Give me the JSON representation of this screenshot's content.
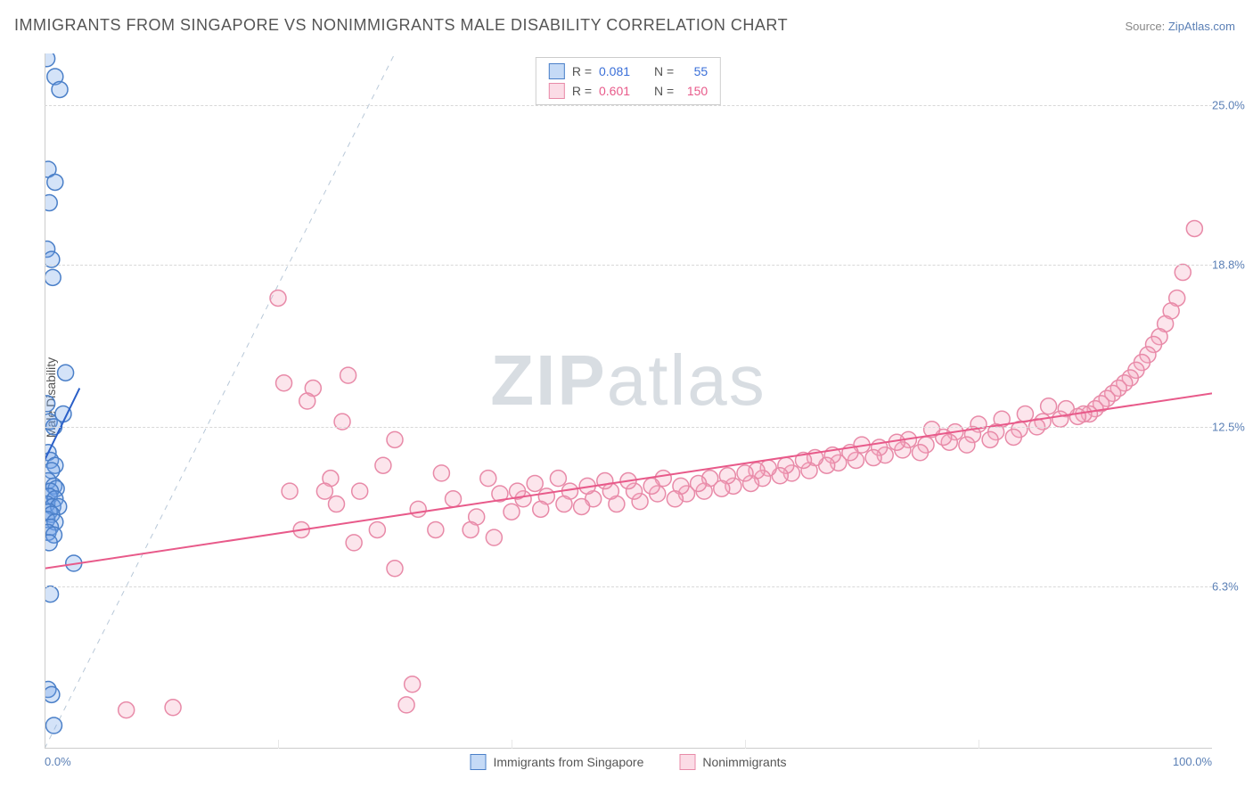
{
  "title": "IMMIGRANTS FROM SINGAPORE VS NONIMMIGRANTS MALE DISABILITY CORRELATION CHART",
  "source_prefix": "Source: ",
  "source_link": "ZipAtlas.com",
  "ylabel": "Male Disability",
  "watermark_left": "ZIP",
  "watermark_right": "atlas",
  "chart": {
    "type": "scatter",
    "background_color": "#ffffff",
    "grid_color": "#d8d8d8",
    "axis_color": "#cccccc",
    "xlim": [
      0,
      100
    ],
    "ylim": [
      0,
      27
    ],
    "x_ticks": [
      0,
      20,
      40,
      60,
      80,
      100
    ],
    "x_tick_labels": {
      "0": "0.0%",
      "100": "100.0%"
    },
    "x_tick_color": "#5a7fb5",
    "y_gridlines": [
      6.3,
      12.5,
      18.8,
      25.0
    ],
    "y_tick_labels": [
      "6.3%",
      "12.5%",
      "18.8%",
      "25.0%"
    ],
    "y_tick_color": "#5a7fb5",
    "marker_radius": 9,
    "marker_stroke_width": 1.5,
    "marker_fill_opacity": 0.3,
    "trend_line_width": 2,
    "diag_line": {
      "x1": 0,
      "y1": 0,
      "x2": 30,
      "y2": 27,
      "color": "#b8c8d8",
      "dash": "6,6",
      "width": 1
    }
  },
  "series": [
    {
      "id": "singapore",
      "label": "Immigrants from Singapore",
      "R": "0.081",
      "N": "55",
      "stat_color": "#3a6fd8",
      "marker_fill": "#6fa3e8",
      "marker_stroke": "#4a7fc8",
      "trend": {
        "x1": 0,
        "y1": 11.2,
        "x2": 3,
        "y2": 14.0,
        "color": "#2a5fc8"
      },
      "points": [
        [
          0.2,
          26.8
        ],
        [
          0.9,
          26.1
        ],
        [
          1.3,
          25.6
        ],
        [
          0.3,
          22.5
        ],
        [
          0.9,
          22.0
        ],
        [
          0.4,
          21.2
        ],
        [
          0.2,
          19.4
        ],
        [
          0.6,
          19.0
        ],
        [
          0.7,
          18.3
        ],
        [
          1.8,
          14.6
        ],
        [
          0.2,
          13.4
        ],
        [
          1.6,
          13.0
        ],
        [
          0.4,
          12.7
        ],
        [
          0.8,
          12.5
        ],
        [
          0.3,
          11.5
        ],
        [
          0.5,
          11.2
        ],
        [
          0.9,
          11.0
        ],
        [
          0.6,
          10.8
        ],
        [
          0.3,
          10.4
        ],
        [
          0.8,
          10.2
        ],
        [
          1.0,
          10.1
        ],
        [
          0.5,
          10.0
        ],
        [
          0.4,
          9.8
        ],
        [
          0.9,
          9.7
        ],
        [
          0.2,
          9.5
        ],
        [
          0.7,
          9.4
        ],
        [
          1.2,
          9.4
        ],
        [
          0.4,
          9.2
        ],
        [
          0.6,
          9.1
        ],
        [
          0.2,
          8.9
        ],
        [
          0.9,
          8.8
        ],
        [
          0.5,
          8.6
        ],
        [
          0.3,
          8.4
        ],
        [
          0.8,
          8.3
        ],
        [
          0.4,
          8.0
        ],
        [
          2.5,
          7.2
        ],
        [
          0.5,
          6.0
        ],
        [
          0.3,
          2.3
        ],
        [
          0.6,
          2.1
        ],
        [
          0.8,
          0.9
        ]
      ]
    },
    {
      "id": "nonimmigrants",
      "label": "Nonimmigrants",
      "R": "0.601",
      "N": "150",
      "stat_color": "#e85a8a",
      "marker_fill": "#f5a8c0",
      "marker_stroke": "#e88aa8",
      "trend": {
        "x1": 0,
        "y1": 7.0,
        "x2": 100,
        "y2": 13.8,
        "color": "#e85a8a"
      },
      "points": [
        [
          98.5,
          20.2
        ],
        [
          97.5,
          18.5
        ],
        [
          97.0,
          17.5
        ],
        [
          96.5,
          17.0
        ],
        [
          96.0,
          16.5
        ],
        [
          95.5,
          16.0
        ],
        [
          95.0,
          15.7
        ],
        [
          94.5,
          15.3
        ],
        [
          94.0,
          15.0
        ],
        [
          93.5,
          14.7
        ],
        [
          93.0,
          14.4
        ],
        [
          92.5,
          14.2
        ],
        [
          92.0,
          14.0
        ],
        [
          91.5,
          13.8
        ],
        [
          91.0,
          13.6
        ],
        [
          90.5,
          13.4
        ],
        [
          90.0,
          13.2
        ],
        [
          89.5,
          13.0
        ],
        [
          89.0,
          13.0
        ],
        [
          88.5,
          12.9
        ],
        [
          87.5,
          13.2
        ],
        [
          87.0,
          12.8
        ],
        [
          86.0,
          13.3
        ],
        [
          85.5,
          12.7
        ],
        [
          85.0,
          12.5
        ],
        [
          84.0,
          13.0
        ],
        [
          83.5,
          12.4
        ],
        [
          83.0,
          12.1
        ],
        [
          82.0,
          12.8
        ],
        [
          81.5,
          12.3
        ],
        [
          81.0,
          12.0
        ],
        [
          80.0,
          12.6
        ],
        [
          79.5,
          12.2
        ],
        [
          79.0,
          11.8
        ],
        [
          78.0,
          12.3
        ],
        [
          77.5,
          11.9
        ],
        [
          77.0,
          12.1
        ],
        [
          76.0,
          12.4
        ],
        [
          75.5,
          11.8
        ],
        [
          75.0,
          11.5
        ],
        [
          74.0,
          12.0
        ],
        [
          73.5,
          11.6
        ],
        [
          73.0,
          11.9
        ],
        [
          72.0,
          11.4
        ],
        [
          71.5,
          11.7
        ],
        [
          71.0,
          11.3
        ],
        [
          70.0,
          11.8
        ],
        [
          69.5,
          11.2
        ],
        [
          69.0,
          11.5
        ],
        [
          68.0,
          11.1
        ],
        [
          67.5,
          11.4
        ],
        [
          67.0,
          11.0
        ],
        [
          66.0,
          11.3
        ],
        [
          65.5,
          10.8
        ],
        [
          65.0,
          11.2
        ],
        [
          64.0,
          10.7
        ],
        [
          63.5,
          11.0
        ],
        [
          63.0,
          10.6
        ],
        [
          62.0,
          10.9
        ],
        [
          61.5,
          10.5
        ],
        [
          61.0,
          10.8
        ],
        [
          60.5,
          10.3
        ],
        [
          60.0,
          10.7
        ],
        [
          59.0,
          10.2
        ],
        [
          58.5,
          10.6
        ],
        [
          58.0,
          10.1
        ],
        [
          57.0,
          10.5
        ],
        [
          56.5,
          10.0
        ],
        [
          56.0,
          10.3
        ],
        [
          55.0,
          9.9
        ],
        [
          54.5,
          10.2
        ],
        [
          54.0,
          9.7
        ],
        [
          53.0,
          10.5
        ],
        [
          52.5,
          9.9
        ],
        [
          52.0,
          10.2
        ],
        [
          51.0,
          9.6
        ],
        [
          50.5,
          10.0
        ],
        [
          50.0,
          10.4
        ],
        [
          49.0,
          9.5
        ],
        [
          48.5,
          10.0
        ],
        [
          48.0,
          10.4
        ],
        [
          47.0,
          9.7
        ],
        [
          46.5,
          10.2
        ],
        [
          46.0,
          9.4
        ],
        [
          45.0,
          10.0
        ],
        [
          44.5,
          9.5
        ],
        [
          44.0,
          10.5
        ],
        [
          43.0,
          9.8
        ],
        [
          42.5,
          9.3
        ],
        [
          42.0,
          10.3
        ],
        [
          41.0,
          9.7
        ],
        [
          40.5,
          10.0
        ],
        [
          40.0,
          9.2
        ],
        [
          39.0,
          9.9
        ],
        [
          38.5,
          8.2
        ],
        [
          38.0,
          10.5
        ],
        [
          37.0,
          9.0
        ],
        [
          36.5,
          8.5
        ],
        [
          35.0,
          9.7
        ],
        [
          34.0,
          10.7
        ],
        [
          33.5,
          8.5
        ],
        [
          32.0,
          9.3
        ],
        [
          31.5,
          2.5
        ],
        [
          31.0,
          1.7
        ],
        [
          30.0,
          12.0
        ],
        [
          30.0,
          7.0
        ],
        [
          29.0,
          11.0
        ],
        [
          28.5,
          8.5
        ],
        [
          27.0,
          10.0
        ],
        [
          26.5,
          8.0
        ],
        [
          26.0,
          14.5
        ],
        [
          25.5,
          12.7
        ],
        [
          25.0,
          9.5
        ],
        [
          24.5,
          10.5
        ],
        [
          23.0,
          14.0
        ],
        [
          24.0,
          10.0
        ],
        [
          22.5,
          13.5
        ],
        [
          22.0,
          8.5
        ],
        [
          21.0,
          10.0
        ],
        [
          20.5,
          14.2
        ],
        [
          20.0,
          17.5
        ],
        [
          11.0,
          1.6
        ],
        [
          7.0,
          1.5
        ]
      ]
    }
  ],
  "legend_top_prefix_R": "R = ",
  "legend_top_prefix_N": "N = "
}
